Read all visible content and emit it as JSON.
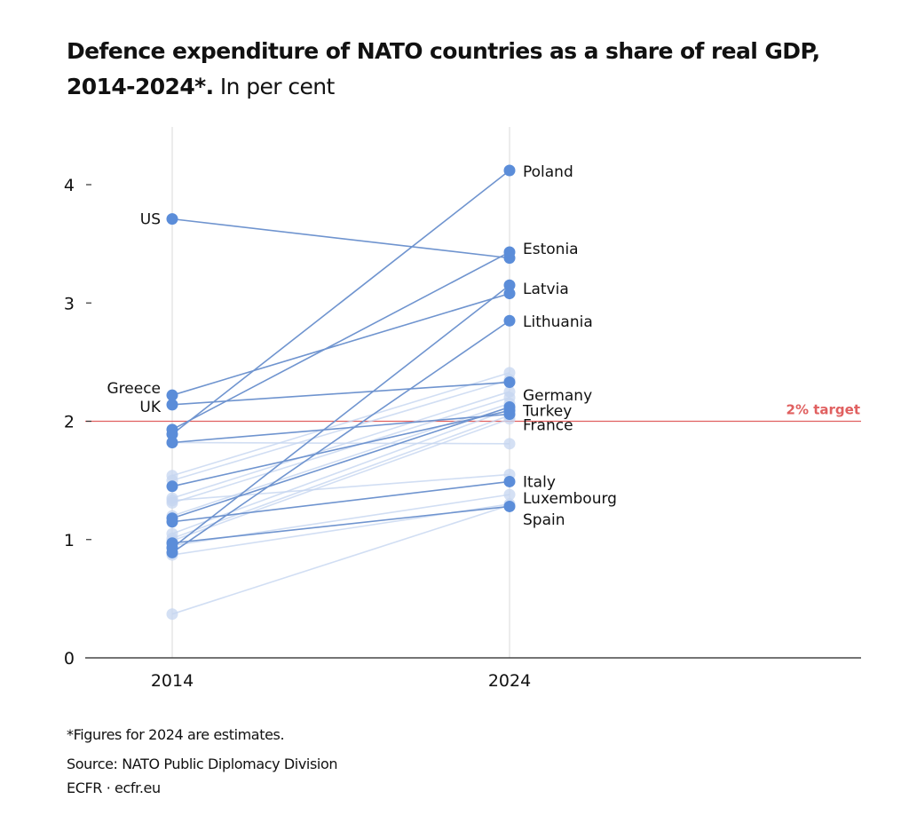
{
  "header": {
    "title_bold": "Defence expenditure of NATO countries as a share of real GDP, 2014-2024*.",
    "title_regular": "In per cent"
  },
  "footer": {
    "note": "*Figures for 2024 are estimates.",
    "source": "Source: NATO Public Diplomacy Division",
    "credit": "ECFR · ecfr.eu"
  },
  "chart_data": {
    "type": "line",
    "subtype": "slope",
    "title": "Defence expenditure of NATO countries as a share of real GDP, 2014-2024*. In per cent",
    "xlabel": "",
    "ylabel": "",
    "x": [
      "2014",
      "2024"
    ],
    "ylim": [
      0,
      4.5
    ],
    "yticks": [
      0,
      1,
      2,
      3,
      4
    ],
    "grid": false,
    "colors": {
      "highlight": "#5b8dd9",
      "faded": "#c5d6f0",
      "target": "#e06060",
      "axis": "#222222"
    },
    "reference_line": {
      "value": 2,
      "label": "2% target"
    },
    "series": [
      {
        "name": "Poland",
        "values": [
          1.89,
          4.12
        ],
        "highlight": true,
        "label_2024": "Poland"
      },
      {
        "name": "US",
        "values": [
          3.71,
          3.38
        ],
        "highlight": true,
        "label_2014": "US"
      },
      {
        "name": "Estonia",
        "values": [
          1.93,
          3.43
        ],
        "highlight": true,
        "label_2024": "Estonia"
      },
      {
        "name": "Latvia",
        "values": [
          0.93,
          3.15
        ],
        "highlight": true,
        "label_2024": "Latvia"
      },
      {
        "name": "Greece",
        "values": [
          2.22,
          3.08
        ],
        "highlight": true,
        "label_2014": "Greece"
      },
      {
        "name": "Lithuania",
        "values": [
          0.89,
          2.85
        ],
        "highlight": true,
        "label_2024": "Lithuania"
      },
      {
        "name": "UK",
        "values": [
          2.14,
          2.33
        ],
        "highlight": true,
        "label_2014": "UK"
      },
      {
        "name": "Germany",
        "values": [
          1.18,
          2.12
        ],
        "highlight": true,
        "label_2024": "Germany"
      },
      {
        "name": "Turkey",
        "values": [
          1.45,
          2.09
        ],
        "highlight": true,
        "label_2024": "Turkey"
      },
      {
        "name": "France",
        "values": [
          1.82,
          2.06
        ],
        "highlight": true,
        "label_2024": "France"
      },
      {
        "name": "Italy",
        "values": [
          1.15,
          1.49
        ],
        "highlight": true,
        "label_2024": "Italy"
      },
      {
        "name": "Spain",
        "values": [
          0.97,
          1.28
        ],
        "highlight": true,
        "label_2024": "Spain"
      },
      {
        "name": "Luxembourg",
        "values": [
          0.37,
          1.29
        ],
        "highlight": false,
        "label_2024": "Luxembourg"
      },
      {
        "name": "other-1",
        "values": [
          1.54,
          2.41
        ],
        "highlight": false
      },
      {
        "name": "other-2",
        "values": [
          1.5,
          2.35
        ],
        "highlight": false
      },
      {
        "name": "other-3",
        "values": [
          1.35,
          2.25
        ],
        "highlight": false
      },
      {
        "name": "other-4",
        "values": [
          1.31,
          2.2
        ],
        "highlight": false
      },
      {
        "name": "other-5",
        "values": [
          1.2,
          2.15
        ],
        "highlight": false
      },
      {
        "name": "other-6",
        "values": [
          1.05,
          2.1
        ],
        "highlight": false
      },
      {
        "name": "other-7",
        "values": [
          1.01,
          2.05
        ],
        "highlight": false
      },
      {
        "name": "other-8",
        "values": [
          0.99,
          2.02
        ],
        "highlight": false
      },
      {
        "name": "other-9",
        "values": [
          1.82,
          1.81
        ],
        "highlight": false
      },
      {
        "name": "other-10",
        "values": [
          1.33,
          1.55
        ],
        "highlight": false
      },
      {
        "name": "other-11",
        "values": [
          0.95,
          1.38
        ],
        "highlight": false
      },
      {
        "name": "other-12",
        "values": [
          0.87,
          1.3
        ],
        "highlight": false
      }
    ],
    "labels_2024_stack": [
      {
        "text": "Germany",
        "anchor": 2.22
      },
      {
        "text": "Turkey",
        "anchor": 2.09
      },
      {
        "text": "France",
        "anchor": 1.97
      },
      {
        "text": "Italy",
        "anchor": 1.49
      },
      {
        "text": "Luxembourg",
        "anchor": 1.35
      },
      {
        "text": "Spain",
        "anchor": 1.17
      }
    ]
  }
}
